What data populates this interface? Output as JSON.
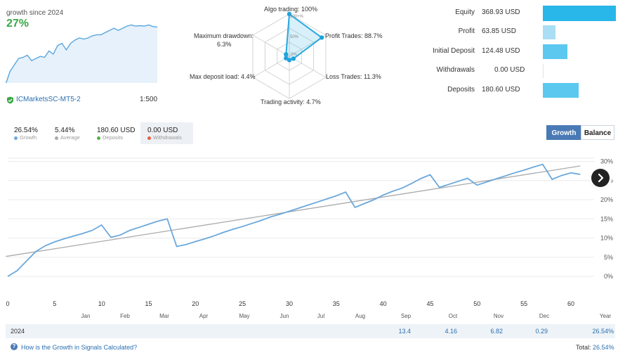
{
  "growth_card": {
    "caption": "growth since 2024",
    "value": "27%",
    "server": "ICMarketsSC-MT5-2",
    "leverage": "1:500",
    "sparkline": [
      0,
      6,
      9,
      12,
      12.5,
      13.5,
      11,
      12,
      13,
      12.5,
      15.5,
      14,
      18,
      19,
      16,
      19,
      20.5,
      21.5,
      21,
      21.5,
      22.5,
      23,
      23,
      24,
      25,
      26,
      25,
      26,
      27,
      27.5,
      27,
      27.2,
      27,
      27.5,
      26.8,
      26.5
    ]
  },
  "radar": {
    "axes": [
      {
        "label": "Algo trading: 100%",
        "value": 100
      },
      {
        "label": "Profit Trades: 88.7%",
        "value": 88.7
      },
      {
        "label": "Loss Trades: 11.3%",
        "value": 11.3
      },
      {
        "label": "Trading activity: 4.7%",
        "value": 4.7
      },
      {
        "label": "Max deposit load: 4.4%",
        "value": 4.4
      },
      {
        "label": "Maximum drawdown:",
        "label2": "6.3%",
        "value": 6.3
      }
    ],
    "ring_labels": [
      "100+%",
      "50%",
      "0%"
    ]
  },
  "financials": {
    "rows": [
      {
        "label": "Equity",
        "value": "368.93 USD",
        "amount": 368.93,
        "color": "#29b6e8"
      },
      {
        "label": "Profit",
        "value": "63.85 USD",
        "amount": 63.85,
        "color": "#a9def4"
      },
      {
        "label": "Initial Deposit",
        "value": "124.48 USD",
        "amount": 124.48,
        "color": "#5cc8ef"
      },
      {
        "label": "Withdrawals",
        "value": "0.00 USD",
        "amount": 0.0,
        "color": "#5cc8ef"
      },
      {
        "label": "Deposits",
        "value": "180.60 USD",
        "amount": 180.6,
        "color": "#5cc8ef"
      }
    ],
    "max_amount": 368.93
  },
  "summary": [
    {
      "value": "26.54%",
      "label": "Growth",
      "dot": "#6aa8dc"
    },
    {
      "value": "5.44%",
      "label": "Average",
      "dot": "#aaaaaa"
    },
    {
      "value": "180.60 USD",
      "label": "Deposits",
      "dot": "#57b04a"
    },
    {
      "value": "0.00 USD",
      "label": "Withdrawals",
      "dot": "#e8603c"
    }
  ],
  "tabs": {
    "growth": "Growth",
    "balance": "Balance"
  },
  "nav": {
    "next_icon": "chevron-right-icon"
  },
  "chart_data": {
    "type": "line",
    "title": "",
    "xlabel": "",
    "ylabel": "",
    "xlim": [
      0,
      61.5
    ],
    "ylim": [
      -2,
      31
    ],
    "x_ticks": [
      "0",
      "5",
      "10",
      "15",
      "20",
      "25",
      "30",
      "35",
      "40",
      "45",
      "50",
      "55",
      "60"
    ],
    "y_ticks": [
      "0%",
      "5%",
      "10%",
      "15%",
      "20%",
      "25%",
      "30%"
    ],
    "months": [
      "Jan",
      "Feb",
      "Mar",
      "Apr",
      "May",
      "Jun",
      "Jul",
      "Aug",
      "Sep",
      "Oct",
      "Nov",
      "Dec",
      "Year"
    ],
    "series": [
      {
        "name": "Growth",
        "color": "#6aa8dc",
        "x": [
          0,
          1,
          2,
          3,
          4,
          5,
          6,
          7,
          8,
          9,
          10,
          11,
          12,
          13,
          14,
          15,
          16,
          17,
          18,
          19,
          20,
          21,
          22,
          23,
          24,
          25,
          26,
          27,
          28,
          29,
          30,
          31,
          32,
          33,
          34,
          35,
          36,
          37,
          38,
          39,
          40,
          41,
          42,
          43,
          44,
          45,
          46,
          47,
          48,
          49,
          50,
          51,
          52,
          53,
          54,
          55,
          56,
          57,
          58,
          59,
          60,
          61
        ],
        "values": [
          0,
          1.5,
          4,
          6.5,
          8,
          9,
          9.8,
          10.5,
          11.2,
          12,
          13.4,
          10.2,
          10.8,
          12,
          12.8,
          13.6,
          14.4,
          15,
          7.8,
          8.3,
          9.1,
          9.8,
          10.6,
          11.5,
          12.3,
          13,
          13.8,
          14.6,
          15.5,
          16.2,
          17,
          17.8,
          18.6,
          19.4,
          20.2,
          21,
          22,
          18,
          19,
          20,
          21.2,
          22.2,
          23,
          24.2,
          25.5,
          26.5,
          23.2,
          24,
          24.8,
          25.6,
          23.8,
          24.6,
          25.4,
          26.2,
          27,
          27.7,
          28.5,
          29.2,
          25.3,
          26.3,
          27,
          26.6
        ]
      },
      {
        "name": "Average",
        "color": "#aaaaaa",
        "x": [
          -0.2,
          61
        ],
        "values": [
          5.2,
          28.8
        ]
      }
    ]
  },
  "year_table": {
    "year": "2024",
    "cells": [
      {
        "month": "Sep",
        "value": "13.4"
      },
      {
        "month": "Oct",
        "value": "4.16"
      },
      {
        "month": "Nov",
        "value": "6.82"
      },
      {
        "month": "Dec",
        "value": "0.29"
      },
      {
        "month": "Year",
        "value": "26.54%"
      }
    ]
  },
  "footer": {
    "link": "How is the Growth in Signals Calculated?",
    "total_label": "Total:",
    "total_value": "26.54%"
  }
}
